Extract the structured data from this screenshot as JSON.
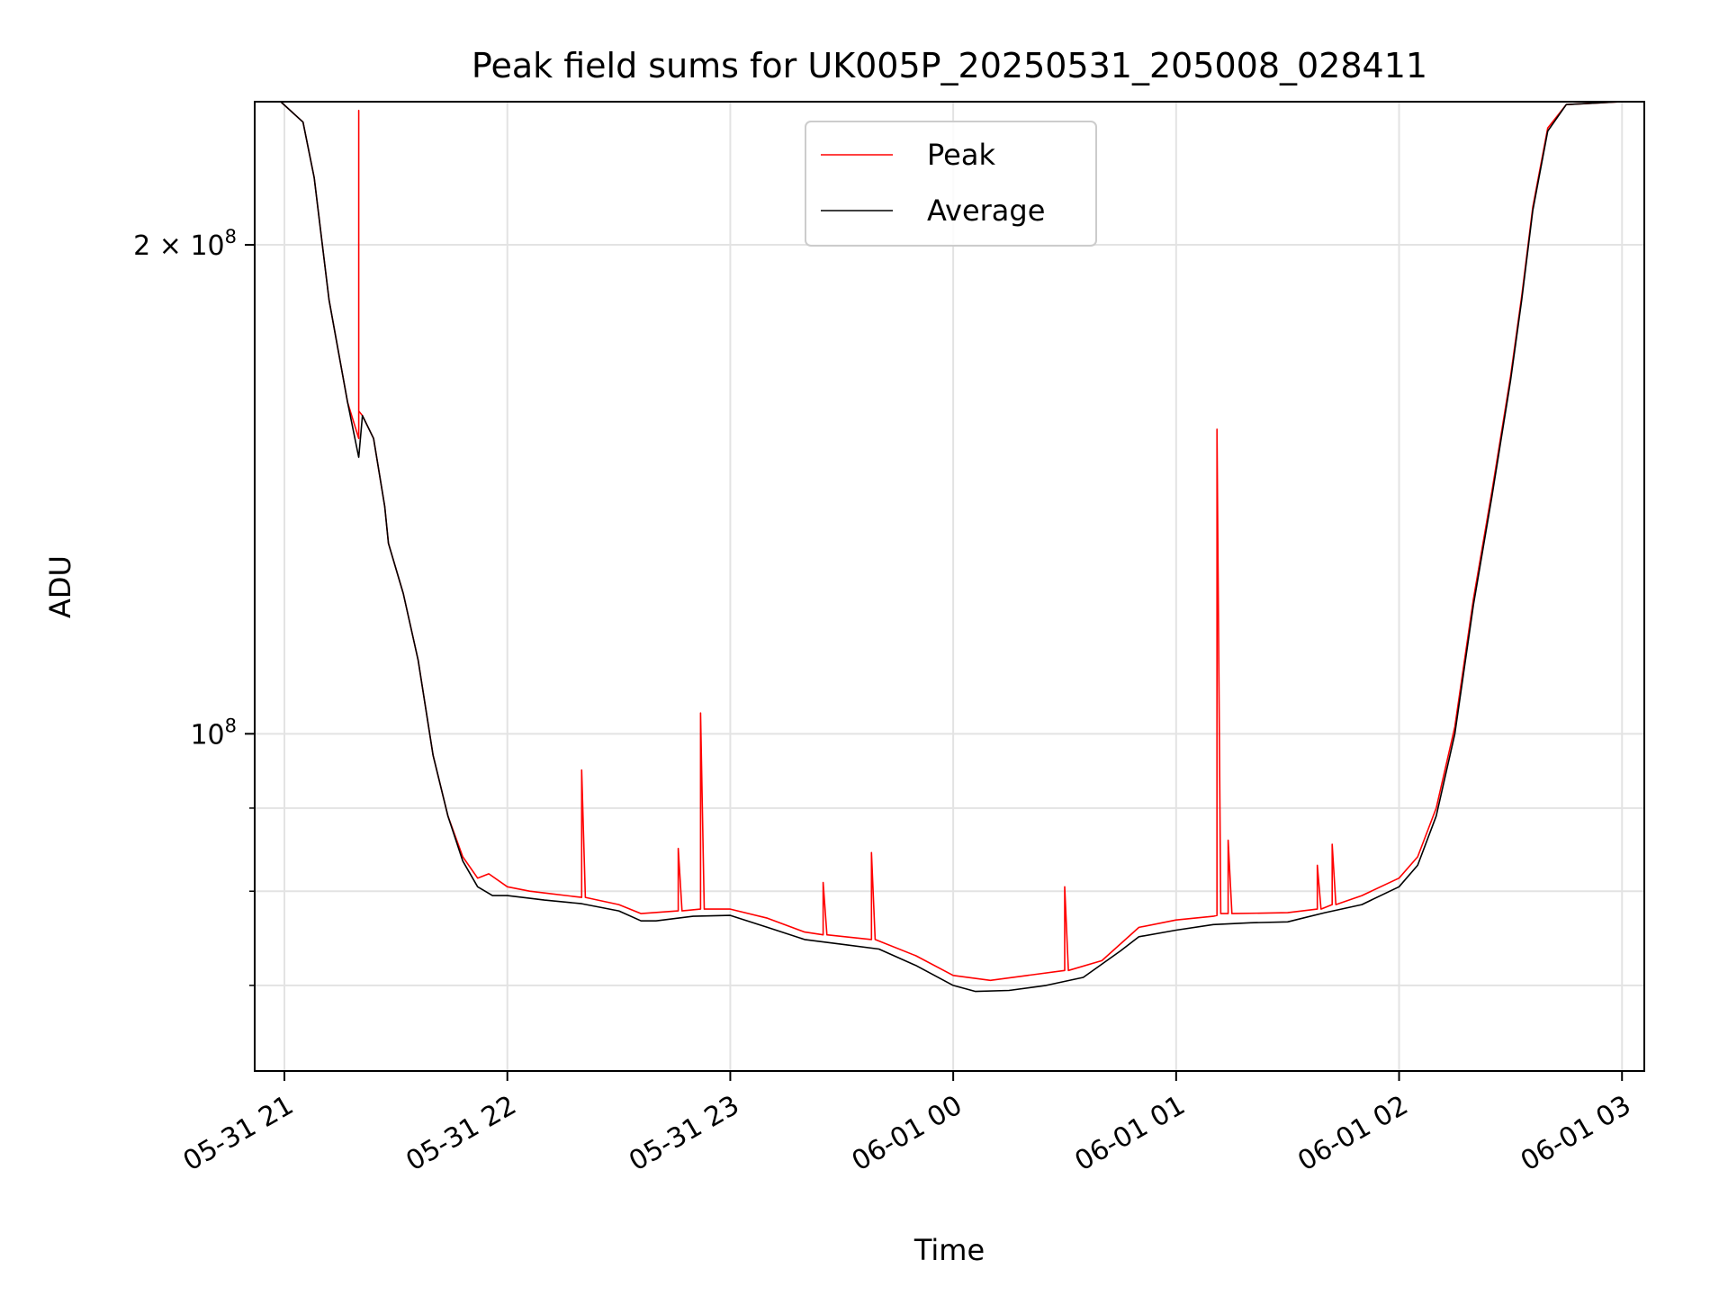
{
  "chart_data": {
    "type": "line",
    "title": "Peak field sums for UK005P_20250531_205008_028411",
    "xlabel": "Time",
    "ylabel": "ADU",
    "yscale": "log",
    "xlim": [
      "2025-05-31 20:52",
      "2025-06-01 03:06"
    ],
    "ylim": [
      62000000,
      245000000
    ],
    "x_ticks": [
      "05-31 21",
      "05-31 22",
      "05-31 23",
      "06-01 00",
      "06-01 01",
      "06-01 02",
      "06-01 03"
    ],
    "y_ticks": [
      {
        "value": 200000000,
        "mantissa": "2",
        "exponent": "8",
        "times": "×",
        "base": "10"
      },
      {
        "value": 100000000,
        "mantissa": "",
        "exponent": "8",
        "times": "",
        "base": "10"
      }
    ],
    "grid": true,
    "legend_position": "upper center",
    "series": [
      {
        "name": "Average",
        "color": "#000000",
        "points": [
          [
            "2025-05-31 20:59",
            245000000
          ],
          [
            "2025-05-31 21:05",
            238000000
          ],
          [
            "2025-05-31 21:08",
            220000000
          ],
          [
            "2025-05-31 21:12",
            185000000
          ],
          [
            "2025-05-31 21:17",
            160000000
          ],
          [
            "2025-05-31 21:20",
            148000000
          ],
          [
            "2025-05-31 21:21",
            157000000
          ],
          [
            "2025-05-31 21:24",
            152000000
          ],
          [
            "2025-05-31 21:27",
            138000000
          ],
          [
            "2025-05-31 21:28",
            131000000
          ],
          [
            "2025-05-31 21:32",
            122000000
          ],
          [
            "2025-05-31 21:36",
            111000000
          ],
          [
            "2025-05-31 21:40",
            97000000
          ],
          [
            "2025-05-31 21:44",
            89000000
          ],
          [
            "2025-05-31 21:48",
            83500000
          ],
          [
            "2025-05-31 21:52",
            80500000
          ],
          [
            "2025-05-31 21:56",
            79500000
          ],
          [
            "2025-05-31 22:00",
            79500000
          ],
          [
            "2025-05-31 22:10",
            79000000
          ],
          [
            "2025-05-31 22:20",
            78600000
          ],
          [
            "2025-05-31 22:30",
            77800000
          ],
          [
            "2025-05-31 22:36",
            76700000
          ],
          [
            "2025-05-31 22:40",
            76700000
          ],
          [
            "2025-05-31 22:50",
            77200000
          ],
          [
            "2025-05-31 23:00",
            77300000
          ],
          [
            "2025-05-31 23:10",
            76000000
          ],
          [
            "2025-05-31 23:20",
            74700000
          ],
          [
            "2025-05-31 23:30",
            74200000
          ],
          [
            "2025-05-31 23:40",
            73700000
          ],
          [
            "2025-05-31 23:50",
            72000000
          ],
          [
            "2025-06-01 00:00",
            70000000
          ],
          [
            "2025-06-01 00:06",
            69400000
          ],
          [
            "2025-06-01 00:15",
            69500000
          ],
          [
            "2025-06-01 00:25",
            70000000
          ],
          [
            "2025-06-01 00:35",
            70800000
          ],
          [
            "2025-06-01 00:45",
            73500000
          ],
          [
            "2025-06-01 00:50",
            75000000
          ],
          [
            "2025-06-01 01:00",
            75700000
          ],
          [
            "2025-06-01 01:10",
            76300000
          ],
          [
            "2025-06-01 01:20",
            76500000
          ],
          [
            "2025-06-01 01:30",
            76600000
          ],
          [
            "2025-06-01 01:40",
            77600000
          ],
          [
            "2025-06-01 01:50",
            78500000
          ],
          [
            "2025-06-01 02:00",
            80500000
          ],
          [
            "2025-06-01 02:05",
            83000000
          ],
          [
            "2025-06-01 02:10",
            89000000
          ],
          [
            "2025-06-01 02:15",
            100000000
          ],
          [
            "2025-06-01 02:20",
            120000000
          ],
          [
            "2025-06-01 02:25",
            140000000
          ],
          [
            "2025-06-01 02:30",
            165000000
          ],
          [
            "2025-06-01 02:33",
            185000000
          ],
          [
            "2025-06-01 02:36",
            210000000
          ],
          [
            "2025-06-01 02:40",
            235000000
          ],
          [
            "2025-06-01 02:45",
            244000000
          ],
          [
            "2025-06-01 03:00",
            245000000
          ]
        ]
      },
      {
        "name": "Peak",
        "color": "#ff0000",
        "points": [
          [
            "2025-05-31 20:59",
            245000000
          ],
          [
            "2025-05-31 21:05",
            238000000
          ],
          [
            "2025-05-31 21:08",
            220000000
          ],
          [
            "2025-05-31 21:12",
            185000000
          ],
          [
            "2025-05-31 21:17",
            160000000
          ],
          [
            "2025-05-31 21:20",
            152000000
          ],
          [
            "2025-05-31 21:20",
            242000000
          ],
          [
            "2025-05-31 21:20",
            158000000
          ],
          [
            "2025-05-31 21:21",
            157000000
          ],
          [
            "2025-05-31 21:24",
            152000000
          ],
          [
            "2025-05-31 21:27",
            138000000
          ],
          [
            "2025-05-31 21:28",
            131000000
          ],
          [
            "2025-05-31 21:32",
            122000000
          ],
          [
            "2025-05-31 21:36",
            111000000
          ],
          [
            "2025-05-31 21:40",
            97000000
          ],
          [
            "2025-05-31 21:44",
            89000000
          ],
          [
            "2025-05-31 21:48",
            84000000
          ],
          [
            "2025-05-31 21:52",
            81500000
          ],
          [
            "2025-05-31 21:55",
            82000000
          ],
          [
            "2025-05-31 22:00",
            80500000
          ],
          [
            "2025-05-31 22:06",
            80000000
          ],
          [
            "2025-05-31 22:10",
            79800000
          ],
          [
            "2025-05-31 22:20",
            79300000
          ],
          [
            "2025-05-31 22:20",
            95000000
          ],
          [
            "2025-05-31 22:21",
            79300000
          ],
          [
            "2025-05-31 22:30",
            78500000
          ],
          [
            "2025-05-31 22:36",
            77500000
          ],
          [
            "2025-05-31 22:46",
            77800000
          ],
          [
            "2025-05-31 22:46",
            85000000
          ],
          [
            "2025-05-31 22:47",
            77800000
          ],
          [
            "2025-05-31 22:52",
            78000000
          ],
          [
            "2025-05-31 22:52",
            103000000
          ],
          [
            "2025-05-31 22:53",
            78000000
          ],
          [
            "2025-05-31 23:00",
            78000000
          ],
          [
            "2025-05-31 23:10",
            77000000
          ],
          [
            "2025-05-31 23:20",
            75500000
          ],
          [
            "2025-05-31 23:25",
            75200000
          ],
          [
            "2025-05-31 23:25",
            81000000
          ],
          [
            "2025-05-31 23:26",
            75200000
          ],
          [
            "2025-05-31 23:38",
            74700000
          ],
          [
            "2025-05-31 23:38",
            84500000
          ],
          [
            "2025-05-31 23:39",
            74700000
          ],
          [
            "2025-05-31 23:50",
            73000000
          ],
          [
            "2025-06-01 00:00",
            71000000
          ],
          [
            "2025-06-01 00:10",
            70500000
          ],
          [
            "2025-06-01 00:20",
            71000000
          ],
          [
            "2025-06-01 00:30",
            71500000
          ],
          [
            "2025-06-01 00:30",
            80500000
          ],
          [
            "2025-06-01 00:31",
            71500000
          ],
          [
            "2025-06-01 00:40",
            72500000
          ],
          [
            "2025-06-01 00:50",
            76000000
          ],
          [
            "2025-06-01 01:00",
            76800000
          ],
          [
            "2025-06-01 01:10",
            77200000
          ],
          [
            "2025-06-01 01:11",
            77300000
          ],
          [
            "2025-06-01 01:11",
            154000000
          ],
          [
            "2025-06-01 01:12",
            77500000
          ],
          [
            "2025-06-01 01:14",
            77500000
          ],
          [
            "2025-06-01 01:14",
            86000000
          ],
          [
            "2025-06-01 01:15",
            77500000
          ],
          [
            "2025-06-01 01:30",
            77600000
          ],
          [
            "2025-06-01 01:38",
            78000000
          ],
          [
            "2025-06-01 01:38",
            83000000
          ],
          [
            "2025-06-01 01:39",
            78000000
          ],
          [
            "2025-06-01 01:42",
            78500000
          ],
          [
            "2025-06-01 01:42",
            85500000
          ],
          [
            "2025-06-01 01:43",
            78500000
          ],
          [
            "2025-06-01 01:50",
            79500000
          ],
          [
            "2025-06-01 02:00",
            81500000
          ],
          [
            "2025-06-01 02:05",
            84000000
          ],
          [
            "2025-06-01 02:10",
            90000000
          ],
          [
            "2025-06-01 02:15",
            101000000
          ],
          [
            "2025-06-01 02:20",
            121000000
          ],
          [
            "2025-06-01 02:25",
            141000000
          ],
          [
            "2025-06-01 02:30",
            166000000
          ],
          [
            "2025-06-01 02:33",
            186000000
          ],
          [
            "2025-06-01 02:36",
            211000000
          ],
          [
            "2025-06-01 02:40",
            236000000
          ],
          [
            "2025-06-01 02:45",
            244000000
          ],
          [
            "2025-06-01 03:00",
            245000000
          ]
        ]
      }
    ],
    "legend": [
      {
        "name": "Peak",
        "color": "#ff0000"
      },
      {
        "name": "Average",
        "color": "#000000"
      }
    ]
  }
}
